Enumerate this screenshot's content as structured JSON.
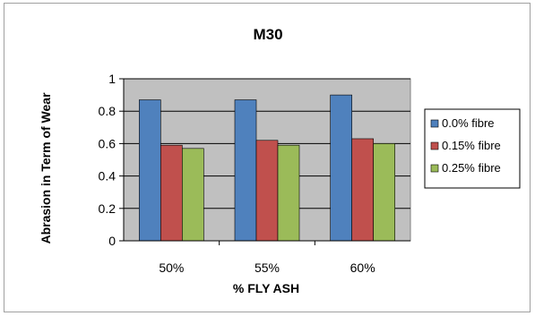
{
  "chart_data": {
    "type": "bar",
    "title": "M30",
    "xlabel": "% FLY ASH",
    "ylabel": "Abrasion in Term of Wear",
    "categories": [
      "50%",
      "55%",
      "60%"
    ],
    "series": [
      {
        "name": "0.0% fibre",
        "values": [
          0.87,
          0.87,
          0.9
        ],
        "color": "#4f81bd"
      },
      {
        "name": "0.15% fibre",
        "values": [
          0.59,
          0.62,
          0.63
        ],
        "color": "#c0504d"
      },
      {
        "name": "0.25% fibre",
        "values": [
          0.57,
          0.59,
          0.6
        ],
        "color": "#9bbb59"
      }
    ],
    "ylim": [
      0,
      1
    ],
    "yticks": [
      "0",
      "0.2",
      "0.4",
      "0.6",
      "0.8",
      "1"
    ],
    "grid": true,
    "plot_background": "#c0c0c0",
    "legend_position": "right"
  }
}
